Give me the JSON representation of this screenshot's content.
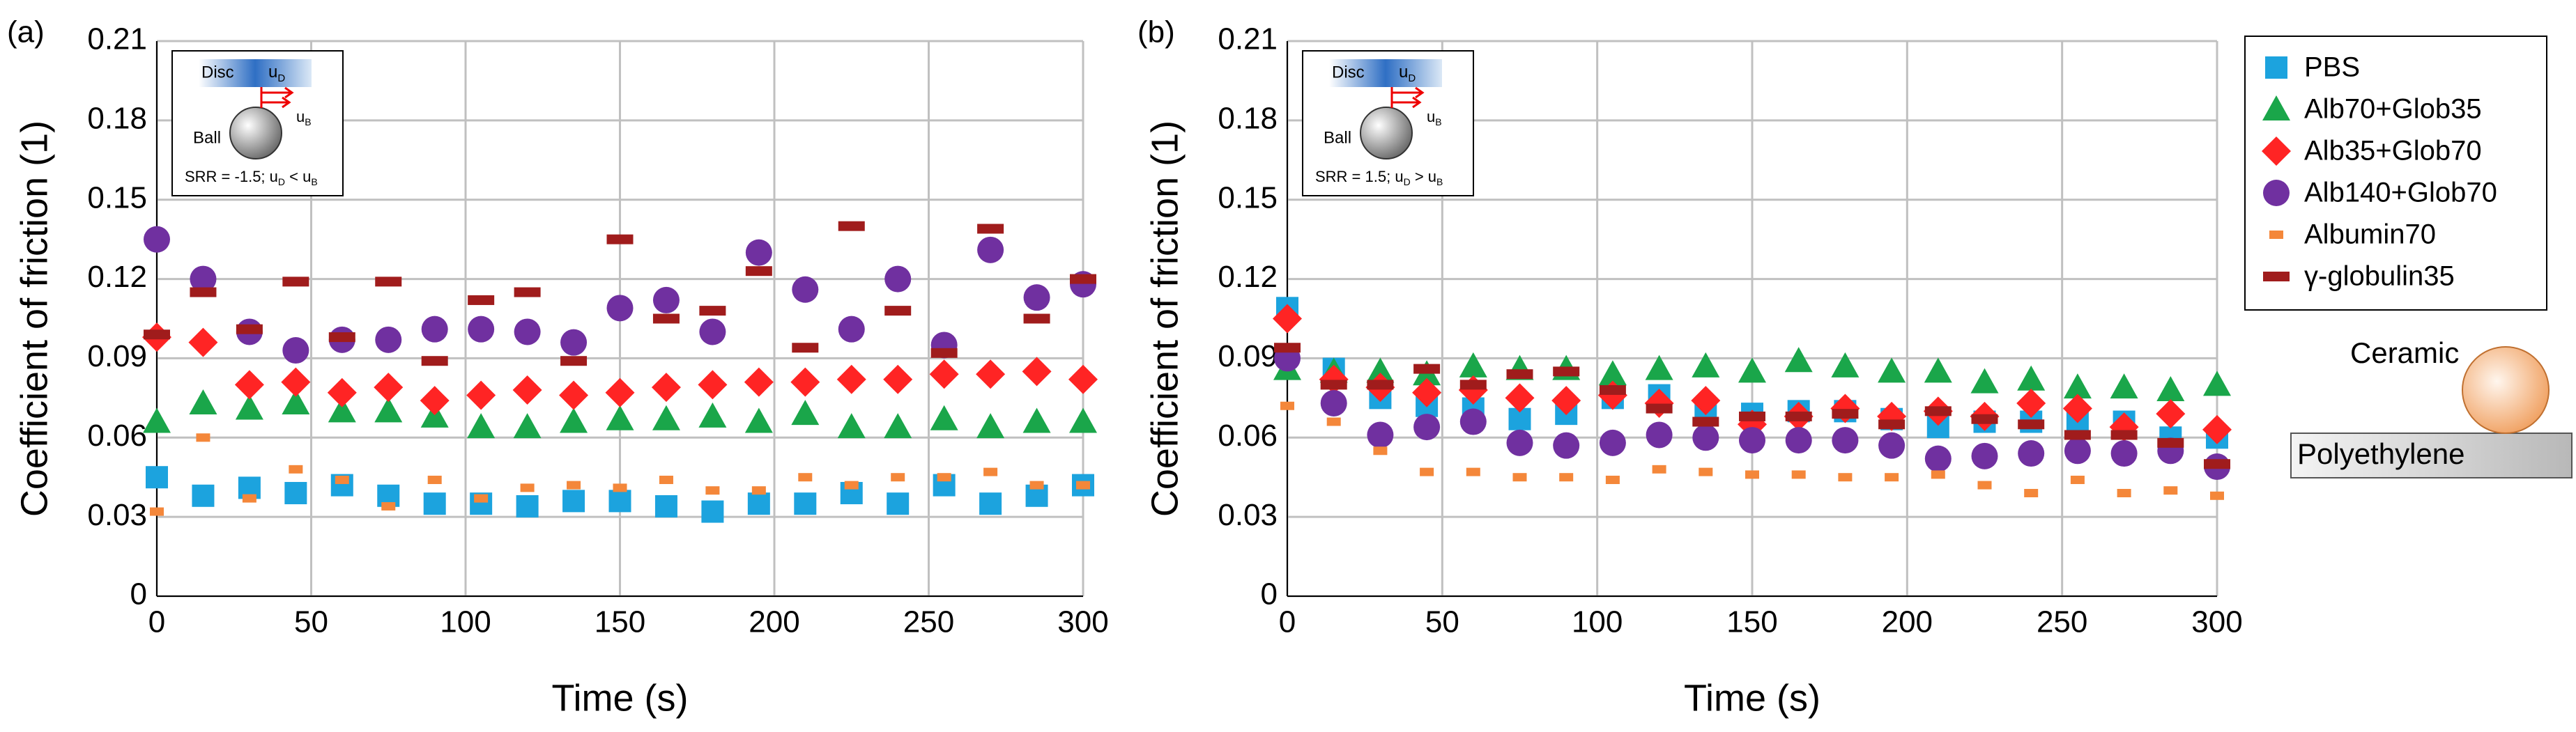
{
  "chart_data": [
    {
      "type": "scatter",
      "panel_label": "(a)",
      "x_label": "Time (s)",
      "y_label": "Coefficient of friction (1)",
      "x": [
        0,
        15,
        30,
        45,
        60,
        75,
        90,
        105,
        120,
        135,
        150,
        165,
        180,
        195,
        210,
        225,
        240,
        255,
        270,
        285,
        300
      ],
      "xlim": [
        0,
        300
      ],
      "xticks": [
        0,
        50,
        100,
        150,
        200,
        250,
        300
      ],
      "ylim": [
        0,
        0.21
      ],
      "yticks": [
        0,
        0.03,
        0.06,
        0.09,
        0.12,
        0.15,
        0.18,
        0.21
      ],
      "grid": true,
      "inset": {
        "disc": "Disc",
        "ball": "Ball",
        "velocity_d": [
          "u",
          "D"
        ],
        "velocity_b": [
          "u",
          "B"
        ],
        "srr": [
          "SRR = -1.5; u",
          "D",
          " < u",
          "B"
        ]
      },
      "series": [
        {
          "name": "PBS",
          "color": "#1ca3de",
          "marker": "square",
          "values": [
            0.045,
            0.038,
            0.041,
            0.039,
            0.042,
            0.038,
            0.035,
            0.035,
            0.034,
            0.036,
            0.036,
            0.034,
            0.032,
            0.035,
            0.035,
            0.039,
            0.035,
            0.042,
            0.035,
            0.038,
            0.042
          ]
        },
        {
          "name": "Alb70+Glob35",
          "color": "#1aa64a",
          "marker": "triangle",
          "values": [
            0.066,
            0.073,
            0.071,
            0.073,
            0.07,
            0.07,
            0.068,
            0.064,
            0.064,
            0.066,
            0.067,
            0.067,
            0.068,
            0.066,
            0.069,
            0.064,
            0.064,
            0.067,
            0.064,
            0.066,
            0.066
          ]
        },
        {
          "name": "Alb35+Glob70",
          "color": "#ff2424",
          "marker": "diamond",
          "values": [
            0.098,
            0.096,
            0.08,
            0.081,
            0.077,
            0.079,
            0.074,
            0.076,
            0.078,
            0.076,
            0.077,
            0.079,
            0.08,
            0.081,
            0.081,
            0.082,
            0.082,
            0.084,
            0.084,
            0.085,
            0.082
          ]
        },
        {
          "name": "Alb140+Glob70",
          "color": "#7030a0",
          "marker": "circle",
          "values": [
            0.135,
            0.12,
            0.1,
            0.093,
            0.097,
            0.097,
            0.101,
            0.101,
            0.1,
            0.096,
            0.109,
            0.112,
            0.1,
            0.13,
            0.116,
            0.101,
            0.12,
            0.095,
            0.131,
            0.113,
            0.118
          ]
        },
        {
          "name": "Albumin70",
          "color": "#f4873a",
          "marker": "dash",
          "values": [
            0.032,
            0.06,
            0.037,
            0.048,
            0.044,
            0.034,
            0.044,
            0.037,
            0.041,
            0.042,
            0.041,
            0.044,
            0.04,
            0.04,
            0.045,
            0.042,
            0.045,
            0.045,
            0.047,
            0.042,
            0.042
          ]
        },
        {
          "name": "γ-globulin35",
          "color": "#a01c1c",
          "marker": "bar",
          "values": [
            0.099,
            0.115,
            0.101,
            0.119,
            0.098,
            0.119,
            0.089,
            0.112,
            0.115,
            0.089,
            0.135,
            0.105,
            0.108,
            0.123,
            0.094,
            0.14,
            0.108,
            0.092,
            0.139,
            0.105,
            0.12
          ]
        }
      ]
    },
    {
      "type": "scatter",
      "panel_label": "(b)",
      "x_label": "Time (s)",
      "y_label": "Coefficient of friction (1)",
      "x": [
        0,
        15,
        30,
        45,
        60,
        75,
        90,
        105,
        120,
        135,
        150,
        165,
        180,
        195,
        210,
        225,
        240,
        255,
        270,
        285,
        300
      ],
      "xlim": [
        0,
        300
      ],
      "xticks": [
        0,
        50,
        100,
        150,
        200,
        250,
        300
      ],
      "ylim": [
        0,
        0.21
      ],
      "yticks": [
        0,
        0.03,
        0.06,
        0.09,
        0.12,
        0.15,
        0.18,
        0.21
      ],
      "grid": true,
      "inset": {
        "disc": "Disc",
        "ball": "Ball",
        "velocity_d": [
          "u",
          "D"
        ],
        "velocity_b": [
          "u",
          "B"
        ],
        "srr": [
          "SRR = 1.5; u",
          "D",
          " > u",
          "B"
        ]
      },
      "series": [
        {
          "name": "PBS",
          "color": "#1ca3de",
          "marker": "square",
          "values": [
            0.109,
            0.086,
            0.075,
            0.072,
            0.071,
            0.067,
            0.069,
            0.075,
            0.076,
            0.071,
            0.069,
            0.07,
            0.07,
            0.067,
            0.064,
            0.066,
            0.066,
            0.066,
            0.066,
            0.06,
            0.06
          ]
        },
        {
          "name": "Alb70+Glob35",
          "color": "#1aa64a",
          "marker": "triangle",
          "values": [
            0.086,
            0.085,
            0.085,
            0.084,
            0.087,
            0.086,
            0.086,
            0.084,
            0.086,
            0.087,
            0.085,
            0.089,
            0.087,
            0.085,
            0.085,
            0.081,
            0.082,
            0.079,
            0.079,
            0.078,
            0.08
          ]
        },
        {
          "name": "Alb35+Glob70",
          "color": "#ff2424",
          "marker": "diamond",
          "values": [
            0.105,
            0.082,
            0.079,
            0.077,
            0.078,
            0.075,
            0.074,
            0.076,
            0.073,
            0.074,
            0.065,
            0.068,
            0.071,
            0.068,
            0.07,
            0.068,
            0.073,
            0.071,
            0.064,
            0.069,
            0.063
          ]
        },
        {
          "name": "Alb140+Glob70",
          "color": "#7030a0",
          "marker": "circle",
          "values": [
            0.09,
            0.073,
            0.061,
            0.064,
            0.066,
            0.058,
            0.057,
            0.058,
            0.061,
            0.06,
            0.059,
            0.059,
            0.059,
            0.057,
            0.052,
            0.053,
            0.054,
            0.055,
            0.054,
            0.055,
            0.049
          ]
        },
        {
          "name": "Albumin70",
          "color": "#f4873a",
          "marker": "dash",
          "values": [
            0.072,
            0.066,
            0.055,
            0.047,
            0.047,
            0.045,
            0.045,
            0.044,
            0.048,
            0.047,
            0.046,
            0.046,
            0.045,
            0.045,
            0.046,
            0.042,
            0.039,
            0.044,
            0.039,
            0.04,
            0.038
          ]
        },
        {
          "name": "γ-globulin35",
          "color": "#a01c1c",
          "marker": "bar",
          "values": [
            0.094,
            0.08,
            0.08,
            0.086,
            0.08,
            0.084,
            0.085,
            0.078,
            0.071,
            0.066,
            0.068,
            0.068,
            0.069,
            0.065,
            0.07,
            0.067,
            0.065,
            0.061,
            0.061,
            0.058,
            0.05
          ]
        }
      ]
    }
  ],
  "schematic": {
    "ball": "Ceramic",
    "plate": "Polyethylene"
  }
}
